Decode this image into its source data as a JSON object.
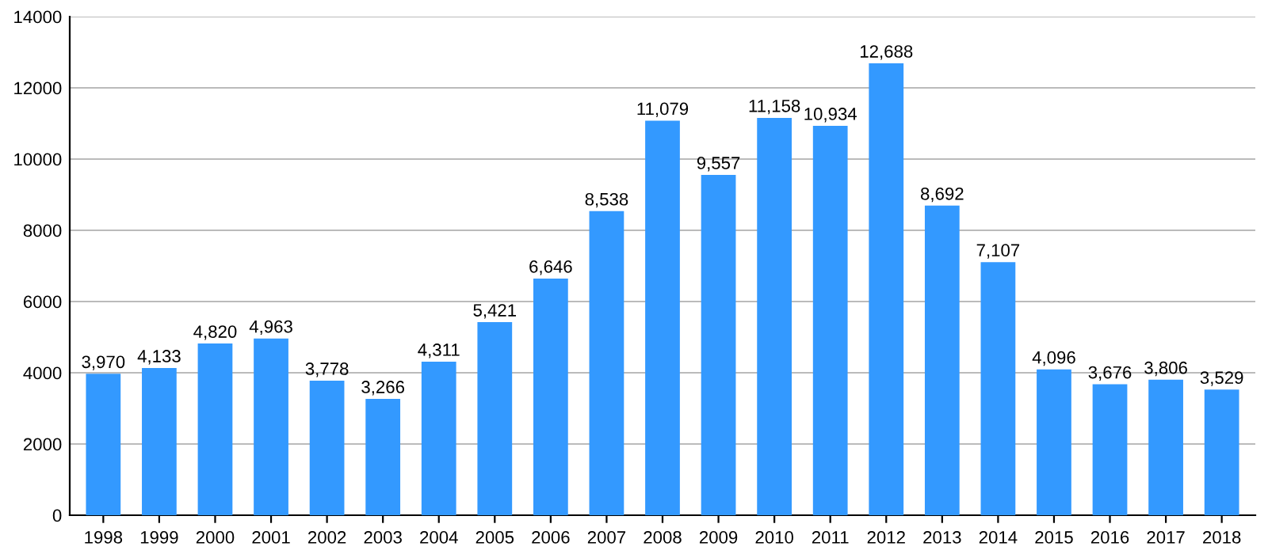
{
  "chart_data": {
    "type": "bar",
    "categories": [
      "1998",
      "1999",
      "2000",
      "2001",
      "2002",
      "2003",
      "2004",
      "2005",
      "2006",
      "2007",
      "2008",
      "2009",
      "2010",
      "2011",
      "2012",
      "2013",
      "2014",
      "2015",
      "2016",
      "2017",
      "2018"
    ],
    "values": [
      3970,
      4133,
      4820,
      4963,
      3778,
      3266,
      4311,
      5421,
      6646,
      8538,
      11079,
      9557,
      11158,
      10934,
      12688,
      8692,
      7107,
      4096,
      3676,
      3806,
      3529
    ],
    "value_labels": [
      "3,970",
      "4,133",
      "4,820",
      "4,963",
      "3,778",
      "3,266",
      "4,311",
      "5,421",
      "6,646",
      "8,538",
      "11,079",
      "9,557",
      "11,158",
      "10,934",
      "12,688",
      "8,692",
      "7,107",
      "4,096",
      "3,676",
      "3,806",
      "3,529"
    ],
    "color": "#3399ff",
    "ylim": [
      0,
      14000
    ],
    "yticks": [
      0,
      2000,
      4000,
      6000,
      8000,
      10000,
      12000,
      14000
    ],
    "grid": "y"
  }
}
